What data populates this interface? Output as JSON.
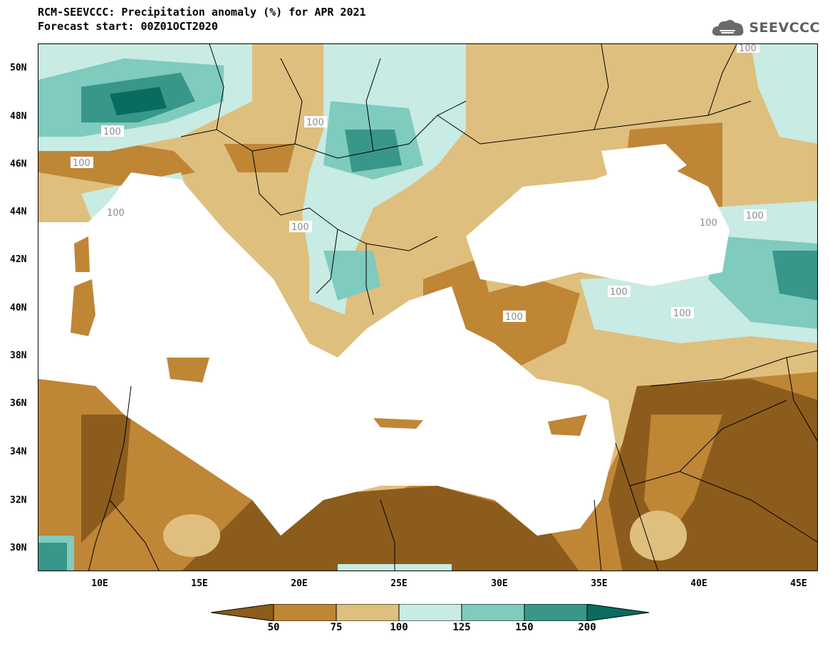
{
  "header": {
    "title_line1": "RCM-SEEVCCC: Precipitation anomaly (%) for APR 2021",
    "title_line2": "Forecast start: 00Z01OCT2020"
  },
  "logo": {
    "text": "SEEVCCC",
    "icon": "cloud-icon",
    "color": "#5f5f5f"
  },
  "map": {
    "region": "Mediterranean / Black Sea",
    "lat_range": [
      29,
      51
    ],
    "lon_range": [
      7,
      46
    ],
    "lat_labels": [
      "50N",
      "48N",
      "46N",
      "44N",
      "42N",
      "40N",
      "38N",
      "36N",
      "34N",
      "32N",
      "30N"
    ],
    "lon_labels": [
      "10E",
      "15E",
      "20E",
      "25E",
      "30E",
      "35E",
      "40E",
      "45E"
    ],
    "contour_label": "100",
    "sea_color": "#ffffff",
    "border_color": "#000000"
  },
  "legend": {
    "labels": [
      "50",
      "75",
      "100",
      "125",
      "150",
      "200"
    ],
    "colors": [
      "#8c5c1c",
      "#bf8636",
      "#dfbf7d",
      "#c8ebe4",
      "#7fcbbe",
      "#389788",
      "#0a6b5f"
    ]
  }
}
